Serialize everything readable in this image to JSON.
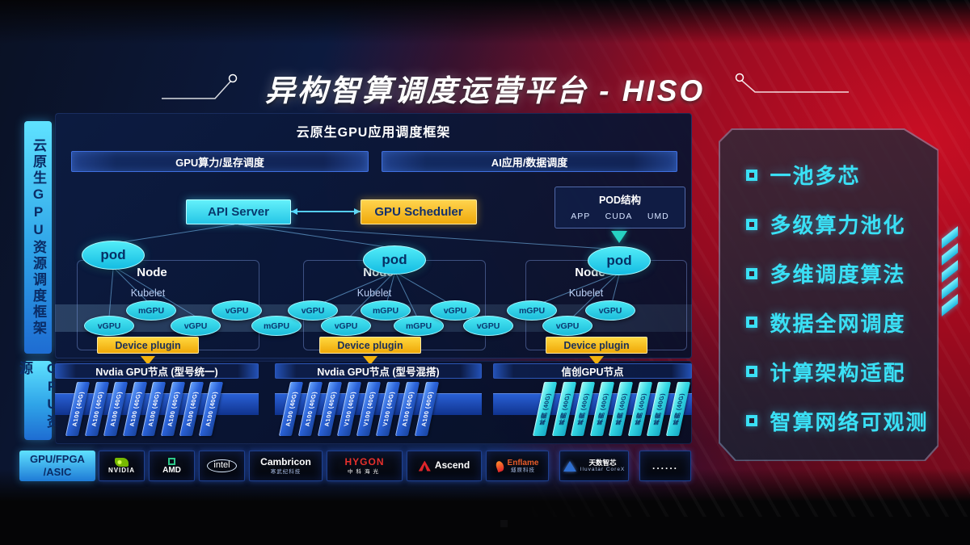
{
  "title": "异构智算调度运营平台 - HISO",
  "sidebar": {
    "top_label": "云原生GPU资源调度框架",
    "bottom_label": "GPU资源"
  },
  "framework": {
    "title": "云原生GPU应用调度框架",
    "sub_bars": {
      "left": "GPU算力/显存调度",
      "right": "AI应用/数据调度"
    },
    "api_server": "API Server",
    "gpu_scheduler": "GPU Scheduler",
    "pod_panel": {
      "title": "POD结构",
      "items": [
        "APP",
        "CUDA",
        "UMD"
      ]
    },
    "pod_label": "pod",
    "nodes": [
      {
        "name": "Node",
        "agent": "Kubelet",
        "plugin": "Device plugin"
      },
      {
        "name": "Node",
        "agent": "Kubelet",
        "plugin": "Device plugin"
      },
      {
        "name": "Node",
        "agent": "Kubelet",
        "plugin": "Device plugin"
      }
    ],
    "gpu_ellipses": [
      "vGPU",
      "mGPU",
      "vGPU",
      "vGPU",
      "mGPU",
      "vGPU",
      "vGPU",
      "mGPU",
      "mGPU",
      "vGPU",
      "vGPU",
      "mGPU",
      "vGPU",
      "vGPU"
    ]
  },
  "gpu_section": {
    "groups": [
      {
        "title": "Nvdia GPU节点 (型号统一)",
        "style": "blue",
        "cards": [
          "A100 (40G)",
          "A100 (40G)",
          "A100 (40G)",
          "A100 (40G)",
          "A100 (40G)",
          "A100 (40G)",
          "A100 (40G)",
          "A100 (40G)"
        ]
      },
      {
        "title": "Nvdia GPU节点 (型号混搭)",
        "style": "blue",
        "cards": [
          "A100 (40G)",
          "A100 (40G)",
          "A100 (40G)",
          "V100 (40G)",
          "V100 (40G)",
          "V100 (40G)",
          "A100 (40G)",
          "A100 (40G)"
        ]
      },
      {
        "title": "信创GPU节点",
        "style": "cyan",
        "cards": [
          "昇腾 (40G)",
          "昇腾 (40G)",
          "昇腾 (40G)",
          "昇腾 (40G)",
          "昇腾 (40G)",
          "昇腾 (40G)",
          "昇腾 (40G)",
          "昇腾 (40G)"
        ]
      }
    ]
  },
  "vendors": {
    "label_lines": [
      "GPU/FPGA",
      "/ASIC"
    ],
    "items": [
      {
        "name": "NVIDIA",
        "sub": "",
        "icon": "nvidia-logo-icon"
      },
      {
        "name": "AMD",
        "sub": "",
        "icon": "amd-logo-icon"
      },
      {
        "name": "intel",
        "sub": "",
        "icon": "intel-logo-icon"
      },
      {
        "name": "Cambricon",
        "sub": "寒武纪科技",
        "icon": "cambricon-logo-icon"
      },
      {
        "name": "HYGON",
        "sub": "中科海光",
        "icon": "hygon-logo-icon"
      },
      {
        "name": "Ascend",
        "sub": "",
        "icon": "ascend-logo-icon"
      },
      {
        "name": "Enflame",
        "sub": "燧原科技",
        "icon": "enflame-logo-icon"
      },
      {
        "name": "天数智芯",
        "sub": "Iluvatar CoreX",
        "icon": "iluvatar-logo-icon"
      },
      {
        "name": "......",
        "sub": "",
        "icon": "more-dots-icon"
      }
    ]
  },
  "features": [
    "一池多芯",
    "多级算力池化",
    "多维调度算法",
    "数据全网调度",
    "计算架构适配",
    "智算网络可观测"
  ],
  "colors": {
    "accent_cyan": "#3ae0f5",
    "accent_yellow": "#f2b20e",
    "card_blue": "#2a62d8",
    "card_cyan": "#35d8e4",
    "background_red": "#a80e22",
    "background_navy": "#0d1c44"
  }
}
